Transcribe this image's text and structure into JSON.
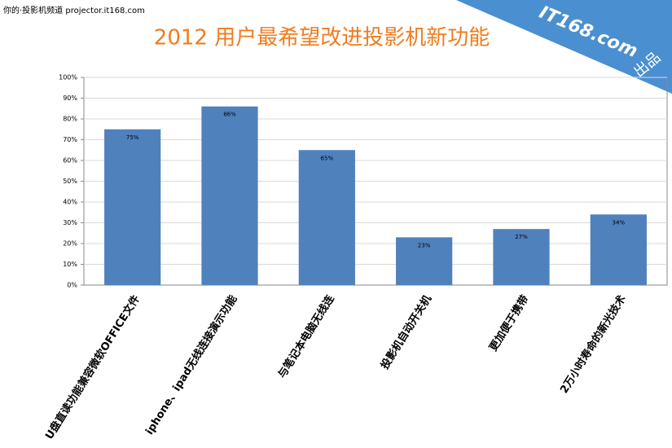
{
  "chart_data": {
    "type": "bar",
    "title": "2012 用户最希望改进投影机新功能",
    "source_label": "你的·投影机频道 projector.it168.com",
    "brand": "IT168.com",
    "brand_note": "出品",
    "categories": [
      "U盘直读功能兼容微软OFFICE文件",
      "iphone、ipad无线连接演示功能",
      "与笔记本电脑无线连",
      "投影机自动开关机",
      "更加便于携带",
      "2万小时寿命的新光技术"
    ],
    "values": [
      75,
      86,
      65,
      23,
      27,
      34
    ],
    "value_labels": [
      "75%",
      "86%",
      "65%",
      "23%",
      "27%",
      "34%"
    ],
    "color": "#4f81bd",
    "ylim": [
      0,
      100
    ],
    "yticks": [
      {
        "value": 0,
        "label": "0%"
      },
      {
        "value": 10,
        "label": "10%"
      },
      {
        "value": 20,
        "label": "20%"
      },
      {
        "value": 30,
        "label": "30%"
      },
      {
        "value": 40,
        "label": "40%"
      },
      {
        "value": 50,
        "label": "50%"
      },
      {
        "value": 60,
        "label": "60%"
      },
      {
        "value": 70,
        "label": "70%"
      },
      {
        "value": 80,
        "label": "80%"
      },
      {
        "value": 90,
        "label": "90%"
      },
      {
        "value": 100,
        "label": "100%"
      }
    ],
    "grid": true
  }
}
